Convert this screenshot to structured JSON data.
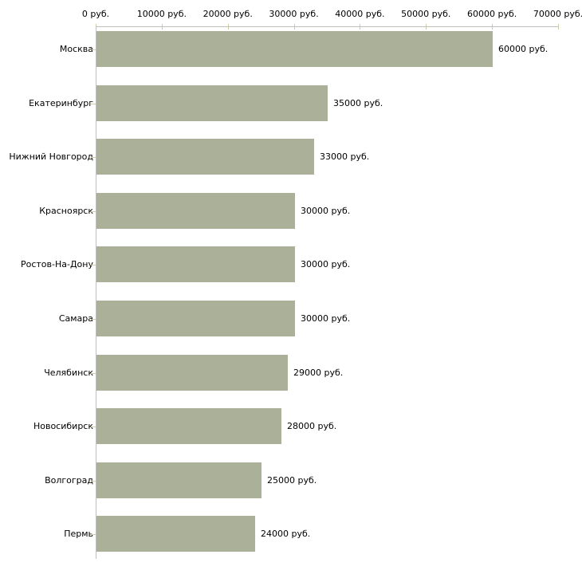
{
  "chart_data": {
    "type": "bar",
    "orientation": "horizontal",
    "title": "",
    "xlabel": "",
    "ylabel": "",
    "unit_suffix": " руб.",
    "categories": [
      "Москва",
      "Екатеринбург",
      "Нижний Новгород",
      "Красноярск",
      "Ростов-На-Дону",
      "Самара",
      "Челябинск",
      "Новосибирск",
      "Волгоград",
      "Пермь"
    ],
    "values": [
      60000,
      35000,
      33000,
      30000,
      30000,
      30000,
      29000,
      28000,
      25000,
      24000
    ],
    "bar_labels": [
      "60000 руб.",
      "35000 руб.",
      "33000 руб.",
      "30000 руб.",
      "30000 руб.",
      "30000 руб.",
      "29000 руб.",
      "28000 руб.",
      "25000 руб.",
      "24000 руб."
    ],
    "x_tick_values": [
      0,
      10000,
      20000,
      30000,
      40000,
      50000,
      60000,
      70000
    ],
    "x_tick_labels": [
      "0 руб.",
      "10000 руб.",
      "20000 руб.",
      "30000 руб.",
      "40000 руб.",
      "50000 руб.",
      "60000 руб.",
      "70000 руб."
    ],
    "xlim": [
      0,
      70000
    ],
    "grid": false,
    "legend": "none",
    "axis_position": "top",
    "colors": {
      "bar": "#abb199",
      "axis_line": "#bfbfbf",
      "tick_mark": "#d0cda6",
      "text": "#000000",
      "background": "#ffffff"
    }
  }
}
